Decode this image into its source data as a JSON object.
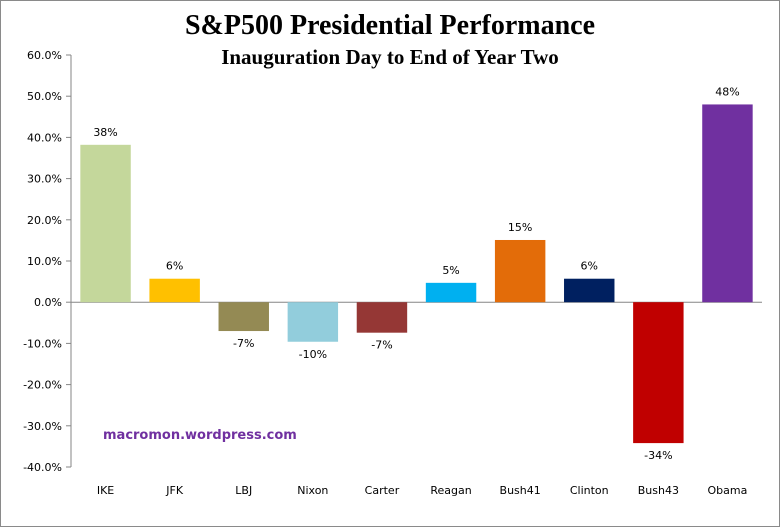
{
  "chart_data": {
    "type": "bar",
    "title": "S&P500 Presidential Performance",
    "subtitle": "Inauguration Day to End of Year Two",
    "categories": [
      "IKE",
      "JFK",
      "LBJ",
      "Nixon",
      "Carter",
      "Reagan",
      "Bush41",
      "Clinton",
      "Bush43",
      "Obama"
    ],
    "values": [
      38.2,
      5.7,
      -7.0,
      -9.6,
      -7.4,
      4.7,
      15.1,
      5.7,
      -34.2,
      48.0
    ],
    "data_labels": [
      "38%",
      "6%",
      "-7%",
      "-10%",
      "-7%",
      "5%",
      "15%",
      "6%",
      "-34%",
      "48%"
    ],
    "colors": [
      "#c4d79b",
      "#ffc000",
      "#948a54",
      "#92cddc",
      "#953735",
      "#00b0f0",
      "#e36c09",
      "#002060",
      "#c00000",
      "#7030a0"
    ],
    "ylim": [
      -40,
      60
    ],
    "yticks": [
      60,
      50,
      40,
      30,
      20,
      10,
      0,
      -10,
      -20,
      -30,
      -40
    ],
    "ytick_labels": [
      "60.0%",
      "50.0%",
      "40.0%",
      "30.0%",
      "20.0%",
      "10.0%",
      "0.0%",
      "-10.0%",
      "-20.0%",
      "-30.0%",
      "-40.0%"
    ],
    "xlabel": "",
    "ylabel": "",
    "grid": false,
    "legend": "none"
  },
  "watermark": "macromon.wordpress.com"
}
